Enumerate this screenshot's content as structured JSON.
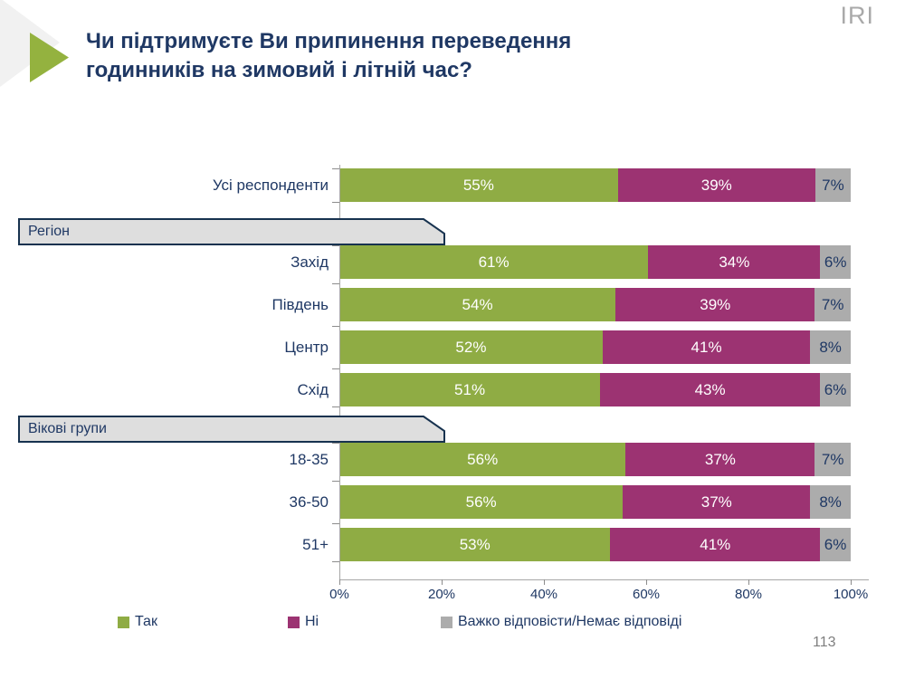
{
  "slide": {
    "logo": "IRI",
    "title_line1": "Чи підтримуєте Ви припинення переведення",
    "title_line2": "годинників на зимовий і літній час?",
    "page_number": "113"
  },
  "colors": {
    "accent_green": "#8fac44",
    "accent_purple": "#9c3372",
    "neutral_gray": "#acacac",
    "navy_text": "#1f3864",
    "axis_gray": "#a6a6a6",
    "banner_fill": "#dedede",
    "banner_border": "#17324f"
  },
  "chart_data": {
    "type": "bar",
    "orientation": "horizontal",
    "stacked": true,
    "xlabel": "",
    "ylabel": "",
    "xlim": [
      0,
      100
    ],
    "grid": false,
    "x_ticks": [
      "0%",
      "20%",
      "40%",
      "60%",
      "80%",
      "100%"
    ],
    "series_names": [
      "Так",
      "Ні",
      "Важко відповісти/Немає відповіді"
    ],
    "series_colors": [
      "#8fac44",
      "#9c3372",
      "#acacac"
    ],
    "groups": [
      {
        "header": null,
        "rows": [
          {
            "label": "Усі респонденти",
            "values": [
              55,
              39,
              7
            ]
          }
        ]
      },
      {
        "header": "Регіон",
        "rows": [
          {
            "label": "Захід",
            "values": [
              61,
              34,
              6
            ]
          },
          {
            "label": "Південь",
            "values": [
              54,
              39,
              7
            ]
          },
          {
            "label": "Центр",
            "values": [
              52,
              41,
              8
            ]
          },
          {
            "label": "Схід",
            "values": [
              51,
              43,
              6
            ]
          }
        ]
      },
      {
        "header": "Вікові групи",
        "rows": [
          {
            "label": "18-35",
            "values": [
              56,
              37,
              7
            ]
          },
          {
            "label": "36-50",
            "values": [
              56,
              37,
              8
            ]
          },
          {
            "label": "51+",
            "values": [
              53,
              41,
              6
            ]
          }
        ]
      }
    ],
    "legend": {
      "position": "bottom",
      "entries": [
        "Так",
        "Ні",
        "Важко відповісти/Немає відповіді"
      ]
    }
  }
}
